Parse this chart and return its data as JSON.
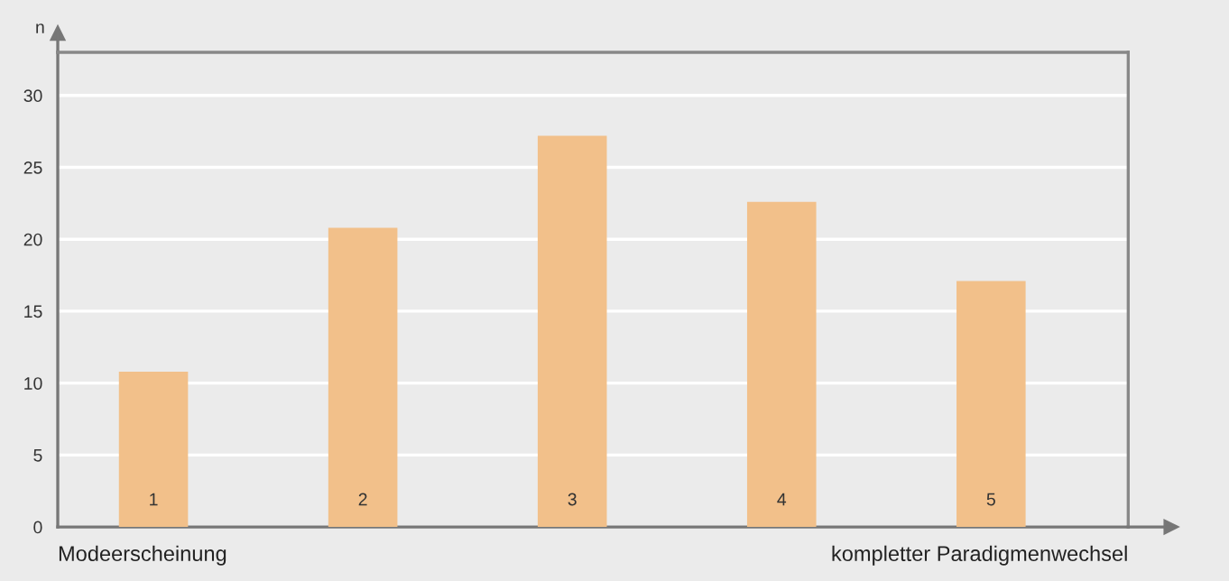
{
  "chart_data": {
    "type": "bar",
    "ylabel": "n",
    "categories": [
      "1",
      "2",
      "3",
      "4",
      "5"
    ],
    "values": [
      10.8,
      20.8,
      27.2,
      22.6,
      17.1
    ],
    "color": "#f2c08a",
    "ylim": [
      0,
      33
    ],
    "yticks": [
      0,
      5,
      10,
      15,
      20,
      25,
      30
    ],
    "grid": "y",
    "annotations": [
      "Modeerscheinung",
      "kompletter Paradigmenwechsel"
    ]
  }
}
